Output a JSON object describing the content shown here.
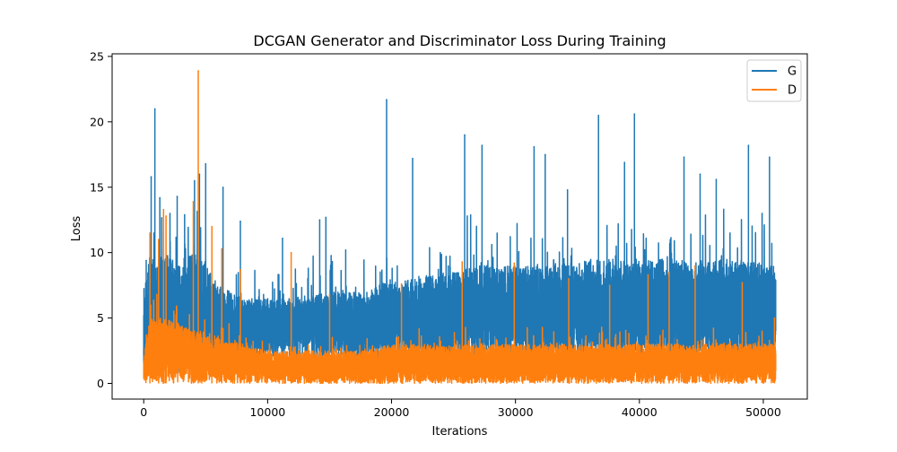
{
  "chart_data": {
    "type": "line",
    "title": "DCGAN Generator and Discriminator Loss During Training",
    "xlabel": "Iterations",
    "ylabel": "Loss",
    "xlim": [
      -2550,
      53550
    ],
    "ylim": [
      -1.2,
      25.2
    ],
    "x_ticks": [
      0,
      10000,
      20000,
      30000,
      40000,
      50000
    ],
    "x_tick_labels": [
      "0",
      "10000",
      "20000",
      "30000",
      "40000",
      "50000"
    ],
    "y_ticks": [
      0,
      5,
      10,
      15,
      20,
      25
    ],
    "y_tick_labels": [
      "0",
      "5",
      "10",
      "15",
      "20",
      "25"
    ],
    "grid": false,
    "legend_position": "top-right",
    "n_points": 51000,
    "series": [
      {
        "name": "G",
        "color": "#1f77b4",
        "envelope": {
          "x": [
            0,
            500,
            1000,
            2000,
            3000,
            4000,
            5000,
            6000,
            8000,
            10000,
            12000,
            15000,
            18000,
            20000,
            22000,
            25000,
            27000,
            30000,
            33000,
            36000,
            39000,
            42000,
            45000,
            48000,
            51000
          ],
          "typical_low": [
            1.0,
            1.5,
            2.0,
            1.5,
            2.0,
            1.5,
            1.0,
            2.0,
            2.5,
            3.0,
            3.5,
            3.0,
            2.5,
            3.0,
            2.5,
            2.5,
            3.0,
            2.5,
            2.5,
            2.5,
            2.5,
            2.5,
            2.5,
            2.5,
            2.5
          ],
          "typical_high": [
            7.0,
            10.0,
            9.5,
            10.0,
            9.0,
            10.0,
            9.0,
            7.5,
            6.5,
            6.5,
            6.5,
            7.0,
            7.0,
            8.0,
            8.0,
            8.5,
            9.0,
            9.0,
            9.0,
            9.5,
            9.5,
            9.5,
            9.5,
            9.5,
            9.0
          ]
        },
        "spikes": [
          {
            "x": 200,
            "y": 9.4
          },
          {
            "x": 600,
            "y": 15.8
          },
          {
            "x": 900,
            "y": 21.0
          },
          {
            "x": 1300,
            "y": 14.2
          },
          {
            "x": 2700,
            "y": 14.3
          },
          {
            "x": 3300,
            "y": 12.9
          },
          {
            "x": 4100,
            "y": 15.5
          },
          {
            "x": 4500,
            "y": 16.0
          },
          {
            "x": 5000,
            "y": 16.8
          },
          {
            "x": 6400,
            "y": 15.0
          },
          {
            "x": 7800,
            "y": 12.4
          },
          {
            "x": 11200,
            "y": 11.1
          },
          {
            "x": 14200,
            "y": 12.5
          },
          {
            "x": 14700,
            "y": 12.7
          },
          {
            "x": 16300,
            "y": 10.2
          },
          {
            "x": 19600,
            "y": 21.7
          },
          {
            "x": 21700,
            "y": 17.2
          },
          {
            "x": 25900,
            "y": 19.0
          },
          {
            "x": 27300,
            "y": 18.2
          },
          {
            "x": 31500,
            "y": 18.1
          },
          {
            "x": 32400,
            "y": 17.5
          },
          {
            "x": 34200,
            "y": 14.8
          },
          {
            "x": 36700,
            "y": 20.5
          },
          {
            "x": 38800,
            "y": 16.9
          },
          {
            "x": 39600,
            "y": 20.6
          },
          {
            "x": 43600,
            "y": 17.3
          },
          {
            "x": 44900,
            "y": 16.0
          },
          {
            "x": 46200,
            "y": 15.6
          },
          {
            "x": 48800,
            "y": 18.2
          },
          {
            "x": 50500,
            "y": 17.3
          }
        ]
      },
      {
        "name": "D",
        "color": "#ff7f0e",
        "envelope": {
          "x": [
            0,
            500,
            1000,
            2000,
            3000,
            4000,
            5000,
            6000,
            8000,
            10000,
            12000,
            15000,
            18000,
            20000,
            22000,
            25000,
            27000,
            30000,
            33000,
            36000,
            39000,
            42000,
            45000,
            48000,
            51000
          ],
          "typical_low": [
            0.0,
            0.0,
            0.0,
            0.0,
            0.0,
            0.0,
            0.0,
            0.0,
            0.0,
            0.0,
            0.0,
            0.0,
            0.0,
            0.0,
            0.0,
            0.0,
            0.0,
            0.0,
            0.0,
            0.0,
            0.0,
            0.0,
            0.0,
            0.0,
            0.0
          ],
          "typical_high": [
            2.0,
            5.0,
            5.0,
            5.0,
            4.5,
            4.0,
            4.0,
            3.5,
            3.0,
            2.5,
            2.5,
            2.5,
            2.5,
            3.0,
            3.0,
            3.0,
            3.0,
            3.0,
            3.0,
            3.0,
            3.0,
            3.0,
            3.0,
            3.0,
            3.0
          ]
        },
        "spikes": [
          {
            "x": 500,
            "y": 11.5
          },
          {
            "x": 1200,
            "y": 11.0
          },
          {
            "x": 1600,
            "y": 13.3
          },
          {
            "x": 1800,
            "y": 12.8
          },
          {
            "x": 4000,
            "y": 13.9
          },
          {
            "x": 4400,
            "y": 23.9
          },
          {
            "x": 5500,
            "y": 12.0
          },
          {
            "x": 6300,
            "y": 10.3
          },
          {
            "x": 7800,
            "y": 8.7
          },
          {
            "x": 11900,
            "y": 10.0
          },
          {
            "x": 15000,
            "y": 6.8
          },
          {
            "x": 20800,
            "y": 7.6
          },
          {
            "x": 25700,
            "y": 9.3
          },
          {
            "x": 29900,
            "y": 9.2
          },
          {
            "x": 34300,
            "y": 8.0
          },
          {
            "x": 37600,
            "y": 7.5
          },
          {
            "x": 40700,
            "y": 8.3
          },
          {
            "x": 42400,
            "y": 8.5
          },
          {
            "x": 44500,
            "y": 9.0
          },
          {
            "x": 48300,
            "y": 7.7
          },
          {
            "x": 50900,
            "y": 5.0
          }
        ]
      }
    ]
  }
}
